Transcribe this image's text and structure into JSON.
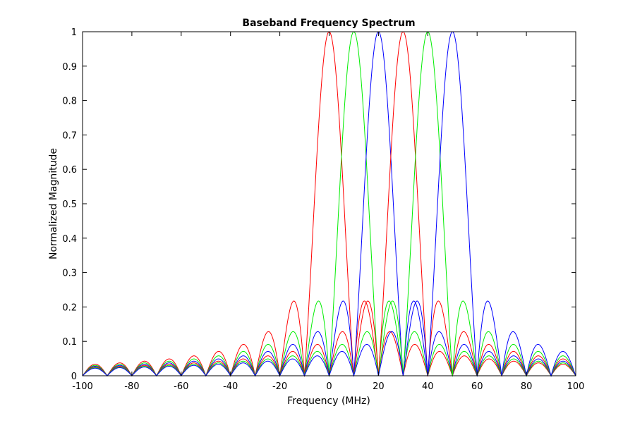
{
  "chart_data": {
    "type": "line",
    "title": "Baseband Frequency Spectrum",
    "xlabel": "Frequency (MHz)",
    "ylabel": "Normalized Magnitude",
    "xlim": [
      -100,
      100
    ],
    "ylim": [
      0,
      1
    ],
    "xticks": [
      -100,
      -80,
      -60,
      -40,
      -20,
      0,
      20,
      40,
      60,
      80,
      100
    ],
    "yticks": [
      0,
      0.1,
      0.2,
      0.3,
      0.4,
      0.5,
      0.6,
      0.7,
      0.8,
      0.9,
      1
    ],
    "xtick_labels": [
      "-100",
      "-80",
      "-60",
      "-40",
      "-20",
      "0",
      "20",
      "40",
      "60",
      "80",
      "100"
    ],
    "ytick_labels": [
      "0",
      "0.1",
      "0.2",
      "0.3",
      "0.4",
      "0.5",
      "0.6",
      "0.7",
      "0.8",
      "0.9",
      "1"
    ],
    "grid": false,
    "function": "abs(sinc((f - center) / 10))",
    "null_spacing": 10,
    "series": [
      {
        "center": 0,
        "color": "#ff0000"
      },
      {
        "center": 10,
        "color": "#00ee00"
      },
      {
        "center": 20,
        "color": "#0000ff"
      },
      {
        "center": 30,
        "color": "#ff0000"
      },
      {
        "center": 40,
        "color": "#00ee00"
      },
      {
        "center": 50,
        "color": "#0000ff"
      }
    ]
  }
}
